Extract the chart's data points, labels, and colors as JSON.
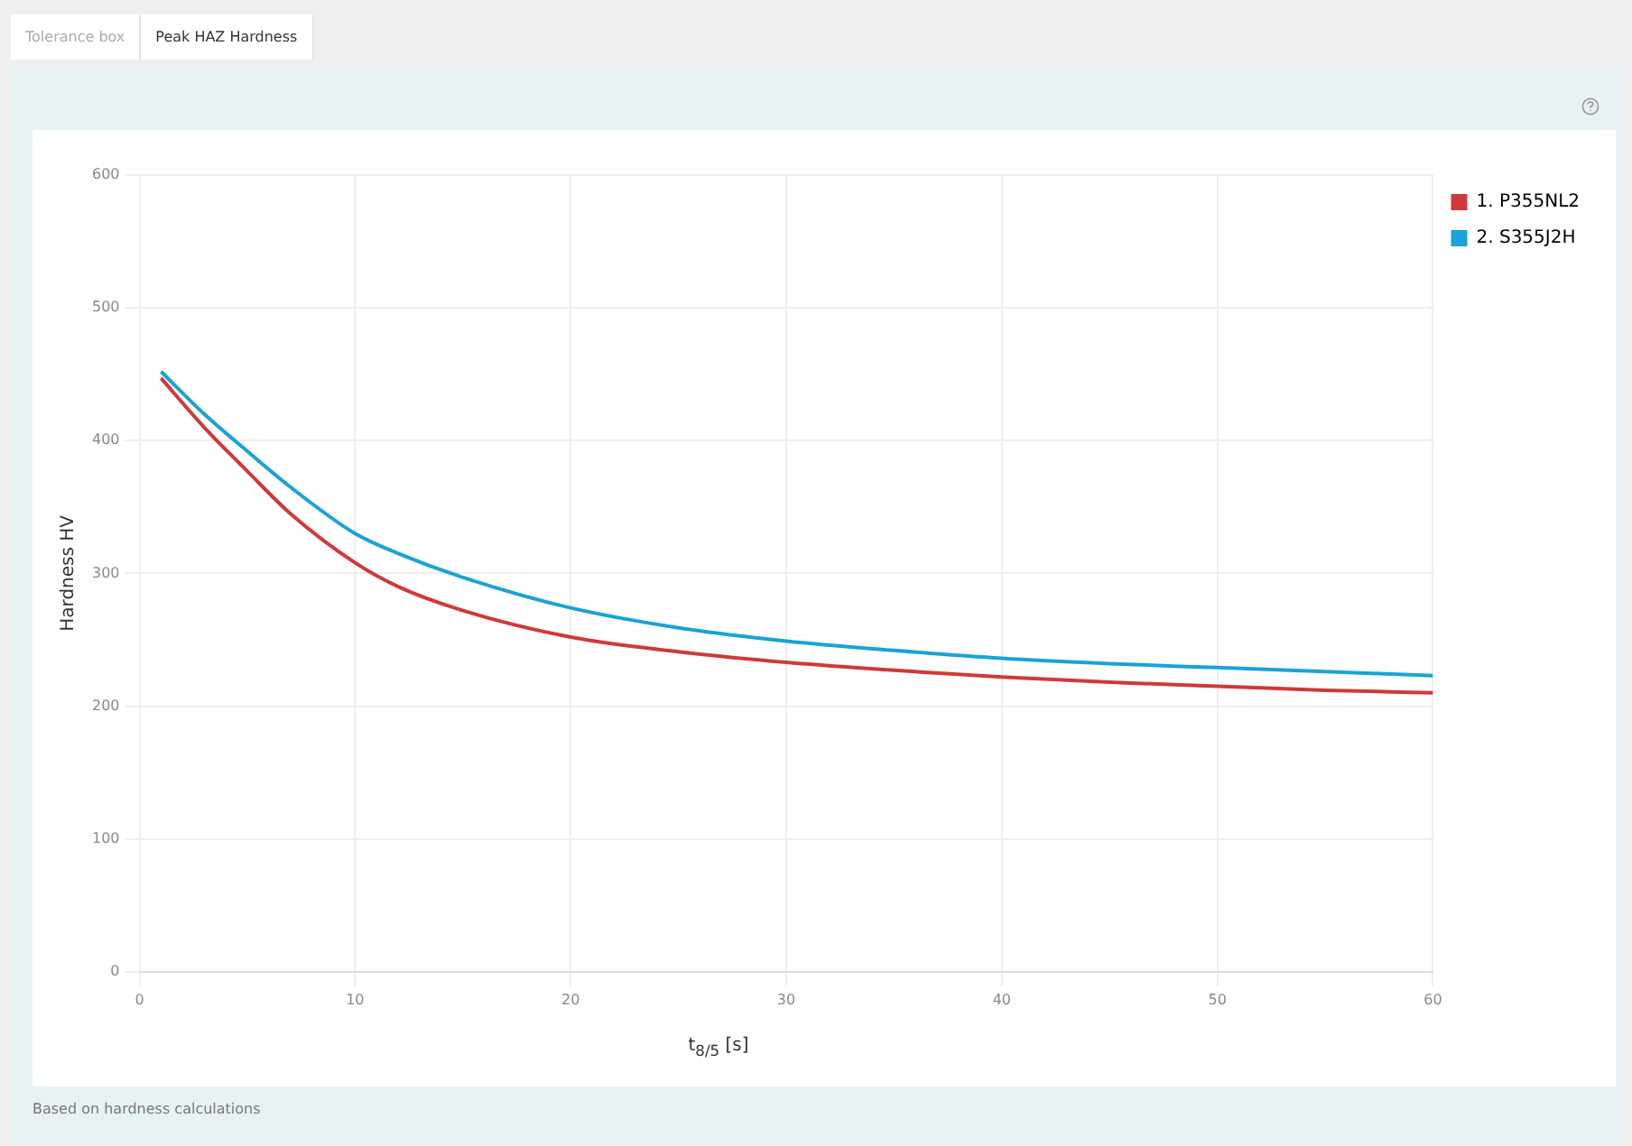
{
  "chart_data": {
    "type": "line",
    "xlabel": "t$_{8/5}$ [s]",
    "ylabel": "Hardness HV",
    "annotations": [
      "Tolerance box",
      "Peak HAZ Hardness",
      "Based on hardness calculations"
    ],
    "xlim": [
      0,
      60
    ],
    "xticks": [
      0,
      10,
      20,
      30,
      40,
      50,
      60
    ],
    "ylim": [
      0,
      600
    ],
    "yticks": [
      0,
      100,
      200,
      300,
      400,
      500,
      600
    ],
    "grid": true,
    "legend": "top right",
    "marker": "none",
    "line_style": "solid",
    "series": [
      {
        "name": "1. P355NL2",
        "color": "#d0393b",
        "x": [
          1,
          3,
          5,
          7,
          10,
          12,
          15,
          20,
          25,
          30,
          35,
          40,
          45,
          50,
          55,
          60
        ],
        "values": [
          447,
          410,
          377,
          345,
          308,
          290,
          272,
          252,
          241,
          233,
          227,
          222,
          218,
          215,
          212,
          210
        ]
      },
      {
        "name": "2. S355J2H",
        "color": "#1aa3d4",
        "x": [
          1,
          3,
          5,
          7,
          10,
          12,
          15,
          20,
          25,
          30,
          35,
          40,
          45,
          50,
          55,
          60
        ],
        "values": [
          452,
          420,
          392,
          365,
          330,
          315,
          297,
          274,
          259,
          249,
          242,
          236,
          232,
          229,
          226,
          223
        ]
      }
    ]
  }
}
